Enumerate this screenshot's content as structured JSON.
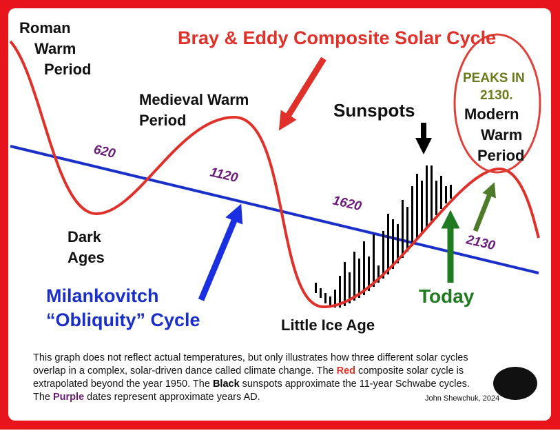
{
  "title": "Bray & Eddy Composite Solar Cycle",
  "labels": {
    "roman": [
      "Roman",
      "Warm",
      "Period"
    ],
    "medieval": [
      "Medieval Warm",
      "Period"
    ],
    "dark_ages": [
      "Dark",
      "Ages"
    ],
    "milankovitch": [
      "Milankovitch",
      "“Obliquity” Cycle"
    ],
    "little_ice_age": "Little Ice Age",
    "sunspots": "Sunspots",
    "today": "Today",
    "peaks": [
      "PEAKS IN",
      "2130."
    ],
    "modern": [
      "Modern",
      "Warm",
      "Period"
    ]
  },
  "years": [
    "620",
    "1120",
    "1620",
    "2130"
  ],
  "caption": [
    [
      "This graph does not reflect actual temperatures, but only illustrates how three different solar cycles"
    ],
    [
      "overlap in a complex, solar-driven dance called climate change.  The ",
      "Red",
      " composite solar cycle is"
    ],
    [
      "extrapolated beyond the year 1950.  The ",
      "Black",
      " sunspots approximate the 11-year Schwabe cycles."
    ],
    [
      "The ",
      "Purple",
      " dates represent approximate years AD."
    ]
  ],
  "credit": "John Shewchuk, 2024"
}
